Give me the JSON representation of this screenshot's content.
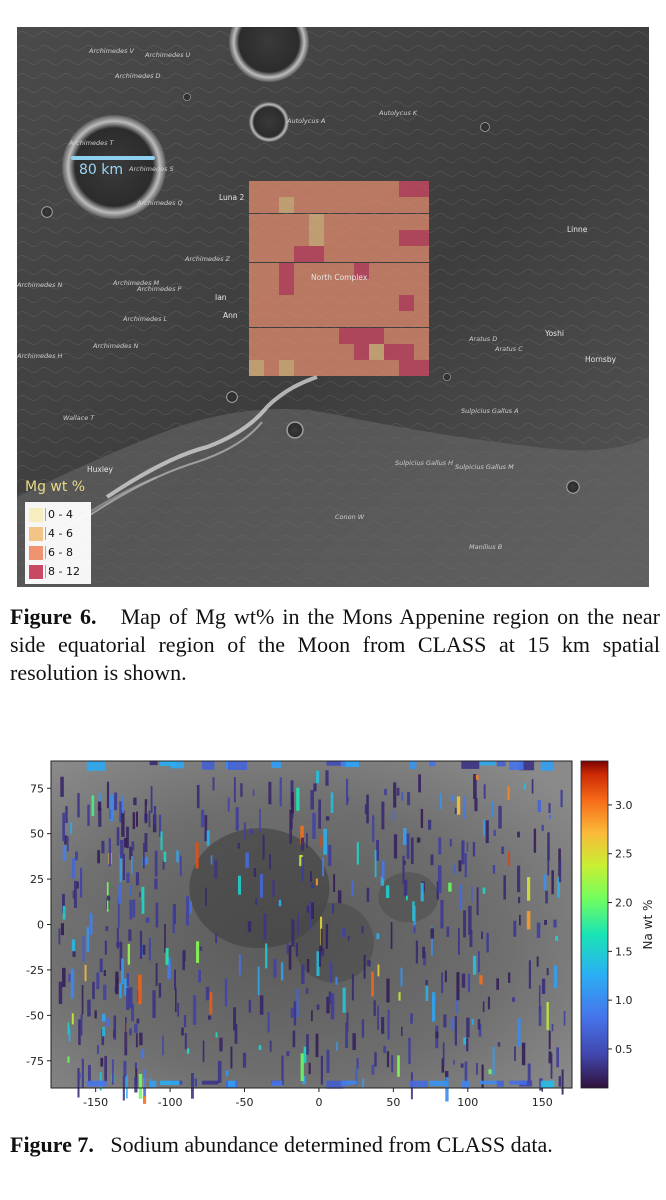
{
  "figure6": {
    "scale_bar_label": "80 km",
    "legend_title": "Mg wt %",
    "legend": [
      {
        "label": "0 - 4",
        "color": "#f7eec0"
      },
      {
        "label": "4 - 6",
        "color": "#f2c486"
      },
      {
        "label": "6 - 8",
        "color": "#ee9270"
      },
      {
        "label": "8 - 12",
        "color": "#c94863"
      }
    ],
    "map_labels": [
      {
        "text": "Archimedes V",
        "cls": ""
      },
      {
        "text": "Archimedes U",
        "cls": ""
      },
      {
        "text": "Archimedes D",
        "cls": ""
      },
      {
        "text": "Archimedes T",
        "cls": ""
      },
      {
        "text": "Archimedes S",
        "cls": ""
      },
      {
        "text": "Archimedes Q",
        "cls": ""
      },
      {
        "text": "Archimedes Z",
        "cls": ""
      },
      {
        "text": "Archimedes N",
        "cls": ""
      },
      {
        "text": "Archimedes M",
        "cls": ""
      },
      {
        "text": "Archimedes P",
        "cls": ""
      },
      {
        "text": "Archimedes L",
        "cls": ""
      },
      {
        "text": "Archimedes N",
        "cls": ""
      },
      {
        "text": "Archimedes H",
        "cls": ""
      },
      {
        "text": "Autolycus A",
        "cls": ""
      },
      {
        "text": "Autolycus K",
        "cls": ""
      },
      {
        "text": "Linne",
        "cls": "up"
      },
      {
        "text": "Ian",
        "cls": "up"
      },
      {
        "text": "Ann",
        "cls": "up"
      },
      {
        "text": "North Complex",
        "cls": "up"
      },
      {
        "text": "Luna 2",
        "cls": "up"
      },
      {
        "text": "Aratus D",
        "cls": ""
      },
      {
        "text": "Aratus C",
        "cls": ""
      },
      {
        "text": "Yoshi",
        "cls": "up"
      },
      {
        "text": "Hornsby",
        "cls": "up"
      },
      {
        "text": "Wallace T",
        "cls": ""
      },
      {
        "text": "Huxley",
        "cls": "up"
      },
      {
        "text": "Sulpicius Gallus A",
        "cls": ""
      },
      {
        "text": "Sulpicius Gallus H",
        "cls": ""
      },
      {
        "text": "Sulpicius Gallus M",
        "cls": ""
      },
      {
        "text": "Conon W",
        "cls": ""
      },
      {
        "text": "Manilius B",
        "cls": ""
      }
    ]
  },
  "caption6": {
    "label": "Figure 6.",
    "text": "Map of Mg wt% in the Mons Appenine region on the near side equatorial region of the Moon from CLASS at 15 km spatial resolution is shown."
  },
  "chart_data": {
    "type": "heatmap",
    "title": "",
    "xlabel": "",
    "ylabel": "",
    "xlim": [
      -180,
      170
    ],
    "ylim": [
      -90,
      90
    ],
    "x_ticks": [
      -150,
      -100,
      -50,
      0,
      50,
      100,
      150
    ],
    "y_ticks": [
      75,
      50,
      25,
      0,
      -25,
      -50,
      -75
    ],
    "colorbar": {
      "label": "Na wt %",
      "range": [
        0.1,
        3.45
      ],
      "ticks": [
        0.5,
        1.0,
        1.5,
        2.0,
        2.5,
        3.0
      ],
      "tick_labels": [
        "0.5",
        "1.0",
        "1.5",
        "2.0",
        "2.5",
        "3.0"
      ],
      "colormap": "jet"
    }
  },
  "caption7": {
    "label": "Figure 7.",
    "text": "Sodium abundance determined from CLASS data."
  }
}
